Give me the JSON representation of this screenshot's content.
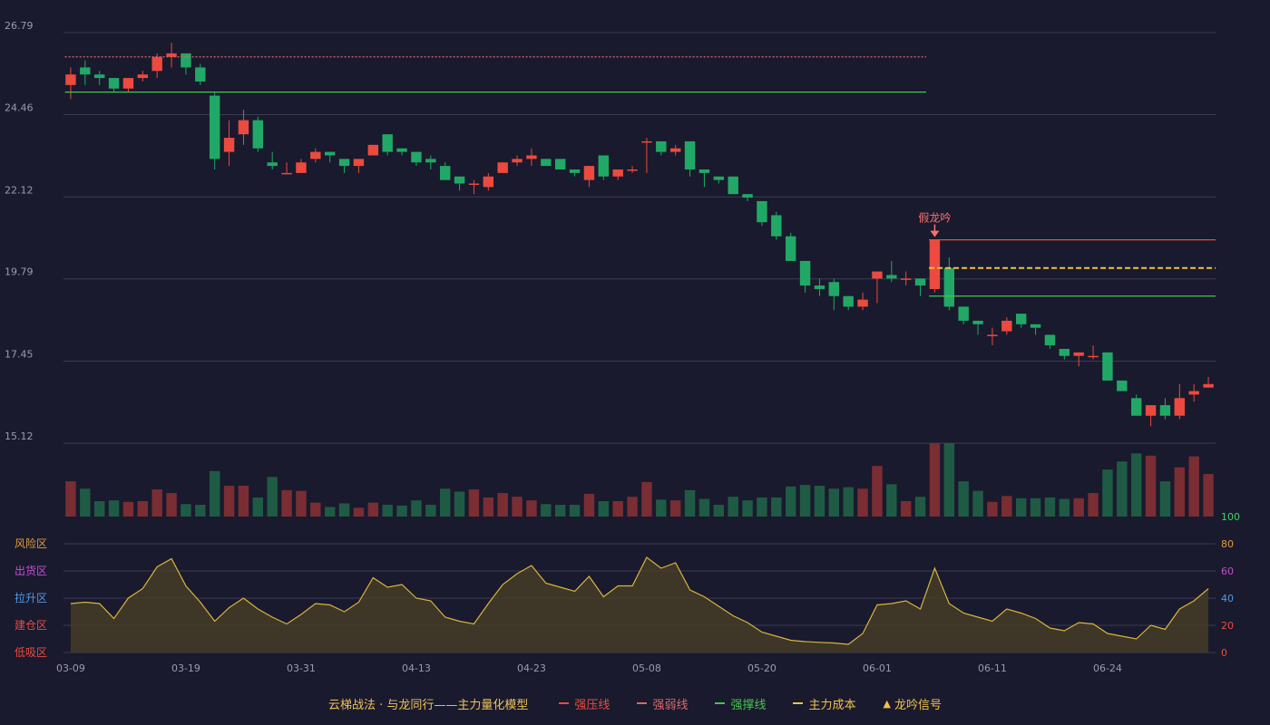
{
  "colors": {
    "background": "#191a2d",
    "grid": "#3a3c52",
    "axis_text": "#9a9cac",
    "up": "#ec4a3f",
    "down": "#22a866",
    "up_volume": "#7a2d33",
    "down_volume": "#1f5b44",
    "resistance": "#ec4a3f",
    "weak": "#d66a66",
    "support": "#46c44e",
    "cost": "#f0c24a",
    "signal": "#ff6f6f",
    "indicator_line": "#d9b43c",
    "indicator_fill": "#4b4025"
  },
  "chart_data": {
    "type": "candlestick",
    "price_axis": {
      "ticks": [
        "26.79",
        "24.46",
        "22.12",
        "19.79",
        "17.45",
        "15.12"
      ],
      "ylim": [
        15.12,
        26.79
      ]
    },
    "x_tick_labels": [
      {
        "index": 0,
        "label": "03-09"
      },
      {
        "index": 8,
        "label": "03-19"
      },
      {
        "index": 16,
        "label": "03-31"
      },
      {
        "index": 24,
        "label": "04-13"
      },
      {
        "index": 32,
        "label": "04-23"
      },
      {
        "index": 40,
        "label": "05-08"
      },
      {
        "index": 48,
        "label": "05-20"
      },
      {
        "index": 56,
        "label": "06-01"
      },
      {
        "index": 64,
        "label": "06-11"
      },
      {
        "index": 72,
        "label": "06-24"
      }
    ],
    "candles": [
      [
        25.3,
        25.6,
        25.8,
        24.9
      ],
      [
        25.8,
        25.6,
        26.0,
        25.3
      ],
      [
        25.6,
        25.5,
        25.7,
        25.3
      ],
      [
        25.5,
        25.2,
        25.5,
        25.1
      ],
      [
        25.2,
        25.5,
        25.5,
        25.1
      ],
      [
        25.5,
        25.6,
        25.7,
        25.4
      ],
      [
        25.7,
        26.1,
        26.2,
        25.5
      ],
      [
        26.1,
        26.2,
        26.5,
        25.8
      ],
      [
        26.2,
        25.8,
        26.2,
        25.6
      ],
      [
        25.8,
        25.4,
        25.9,
        25.3
      ],
      [
        25.0,
        23.2,
        25.1,
        22.9
      ],
      [
        23.4,
        23.8,
        24.3,
        23.0
      ],
      [
        23.9,
        24.3,
        24.6,
        23.6
      ],
      [
        24.3,
        23.5,
        24.4,
        23.4
      ],
      [
        23.1,
        23.0,
        23.4,
        22.9
      ],
      [
        22.8,
        22.8,
        23.1,
        22.8
      ],
      [
        22.8,
        23.1,
        23.2,
        22.8
      ],
      [
        23.2,
        23.4,
        23.5,
        23.1
      ],
      [
        23.4,
        23.3,
        23.4,
        23.1
      ],
      [
        23.2,
        23.0,
        23.2,
        22.8
      ],
      [
        23.0,
        23.2,
        23.2,
        22.8
      ],
      [
        23.3,
        23.6,
        23.6,
        23.3
      ],
      [
        23.9,
        23.4,
        23.9,
        23.3
      ],
      [
        23.5,
        23.4,
        23.5,
        23.3
      ],
      [
        23.4,
        23.1,
        23.4,
        23.0
      ],
      [
        23.2,
        23.1,
        23.3,
        22.9
      ],
      [
        23.0,
        22.6,
        23.1,
        22.6
      ],
      [
        22.7,
        22.5,
        22.7,
        22.3
      ],
      [
        22.5,
        22.5,
        22.6,
        22.2
      ],
      [
        22.4,
        22.7,
        22.8,
        22.3
      ],
      [
        22.8,
        23.1,
        23.1,
        22.8
      ],
      [
        23.1,
        23.2,
        23.3,
        23.0
      ],
      [
        23.2,
        23.3,
        23.5,
        23.0
      ],
      [
        23.2,
        23.0,
        23.2,
        23.0
      ],
      [
        23.2,
        22.9,
        23.2,
        22.9
      ],
      [
        22.9,
        22.8,
        22.9,
        22.7
      ],
      [
        22.6,
        23.0,
        23.0,
        22.4
      ],
      [
        23.3,
        22.7,
        23.3,
        22.6
      ],
      [
        22.7,
        22.9,
        22.9,
        22.6
      ],
      [
        22.9,
        22.9,
        23.0,
        22.8
      ],
      [
        23.7,
        23.7,
        23.8,
        22.8
      ],
      [
        23.7,
        23.4,
        23.7,
        23.3
      ],
      [
        23.4,
        23.5,
        23.6,
        23.3
      ],
      [
        23.7,
        22.9,
        23.7,
        22.7
      ],
      [
        22.9,
        22.8,
        22.9,
        22.4
      ],
      [
        22.7,
        22.6,
        22.7,
        22.5
      ],
      [
        22.7,
        22.2,
        22.7,
        22.2
      ],
      [
        22.2,
        22.1,
        22.2,
        22.0
      ],
      [
        22.0,
        21.4,
        22.0,
        21.3
      ],
      [
        21.6,
        21.0,
        21.7,
        20.9
      ],
      [
        21.0,
        20.3,
        21.1,
        20.3
      ],
      [
        20.3,
        19.6,
        20.3,
        19.4
      ],
      [
        19.6,
        19.5,
        19.8,
        19.3
      ],
      [
        19.7,
        19.3,
        19.8,
        18.9
      ],
      [
        19.3,
        19.0,
        19.3,
        18.9
      ],
      [
        19.0,
        19.2,
        19.4,
        18.9
      ],
      [
        19.8,
        20.0,
        20.0,
        19.1
      ],
      [
        19.9,
        19.8,
        20.3,
        19.7
      ],
      [
        19.8,
        19.8,
        20.0,
        19.6
      ],
      [
        19.8,
        19.6,
        19.8,
        19.3
      ],
      [
        19.5,
        20.9,
        20.9,
        19.4
      ],
      [
        20.1,
        19.0,
        20.4,
        18.9
      ],
      [
        19.0,
        18.6,
        19.0,
        18.5
      ],
      [
        18.6,
        18.5,
        18.6,
        18.2
      ],
      [
        18.2,
        18.2,
        18.4,
        17.9
      ],
      [
        18.3,
        18.6,
        18.7,
        18.2
      ],
      [
        18.8,
        18.5,
        18.8,
        18.4
      ],
      [
        18.5,
        18.4,
        18.5,
        18.2
      ],
      [
        18.2,
        17.9,
        18.2,
        17.8
      ],
      [
        17.8,
        17.6,
        17.8,
        17.5
      ],
      [
        17.6,
        17.7,
        17.7,
        17.3
      ],
      [
        17.6,
        17.6,
        17.9,
        17.5
      ],
      [
        17.7,
        16.9,
        17.7,
        16.9
      ],
      [
        16.9,
        16.6,
        16.9,
        16.6
      ],
      [
        16.4,
        15.9,
        16.5,
        15.9
      ],
      [
        15.9,
        16.2,
        16.2,
        15.6
      ],
      [
        16.2,
        15.9,
        16.4,
        15.8
      ],
      [
        15.9,
        16.4,
        16.8,
        15.8
      ],
      [
        16.5,
        16.6,
        16.8,
        16.3
      ],
      [
        16.7,
        16.8,
        17.0,
        16.7
      ]
    ],
    "volumes": [
      48,
      38,
      21,
      22,
      20,
      21,
      37,
      32,
      17,
      16,
      62,
      42,
      42,
      26,
      54,
      36,
      35,
      19,
      13,
      18,
      12,
      19,
      16,
      15,
      22,
      16,
      38,
      34,
      37,
      26,
      32,
      27,
      22,
      17,
      16,
      16,
      31,
      21,
      21,
      27,
      47,
      23,
      22,
      36,
      24,
      16,
      27,
      22,
      26,
      26,
      41,
      43,
      42,
      38,
      40,
      38,
      69,
      44,
      21,
      27,
      145,
      166,
      48,
      35,
      20,
      28,
      25,
      25,
      26,
      24,
      25,
      32,
      64,
      75,
      86,
      83,
      48,
      67,
      82,
      58
    ],
    "volume_max": 100,
    "indicator": {
      "name": "龙吟区间",
      "axis_ticks": [
        "100",
        "80",
        "60",
        "40",
        "20",
        "0"
      ],
      "ylim": [
        0,
        100
      ],
      "zones": [
        "风险区",
        "出货区",
        "拉升区",
        "建仓区",
        "低吸区"
      ],
      "values": [
        36,
        37,
        36,
        25,
        40,
        47,
        63,
        69,
        49,
        37,
        23,
        33,
        40,
        32,
        26,
        21,
        28,
        36,
        35,
        30,
        37,
        55,
        48,
        50,
        40,
        38,
        26,
        23,
        21,
        36,
        50,
        58,
        64,
        51,
        48,
        45,
        56,
        41,
        49,
        49,
        70,
        62,
        66,
        46,
        41,
        34,
        27,
        22,
        15,
        12,
        9,
        8,
        7.5,
        7,
        6,
        14,
        35,
        36,
        38,
        32,
        62,
        36,
        29,
        26,
        23,
        32,
        29,
        25,
        18,
        16,
        22,
        21,
        14,
        12,
        10,
        20,
        17,
        32,
        38,
        47
      ]
    },
    "lines": [
      {
        "kind": "weak",
        "value": 26.1,
        "from": 0,
        "to": 59
      },
      {
        "kind": "support",
        "value": 25.1,
        "from": 0,
        "to": 59
      },
      {
        "kind": "resistance",
        "value": 20.9,
        "from": 60,
        "to": 79
      },
      {
        "kind": "cost",
        "value": 20.1,
        "from": 60,
        "to": 79
      },
      {
        "kind": "support",
        "value": 19.3,
        "from": 60,
        "to": 79
      }
    ],
    "signal": {
      "index": 60,
      "label": "假龙吟"
    }
  },
  "legend": {
    "title": "云梯战法 · 与龙同行——主力量化模型",
    "items": [
      {
        "label": "强压线",
        "style": "solid",
        "color": "#ec4a3f"
      },
      {
        "label": "强弱线",
        "style": "dashed",
        "color": "#d66a66"
      },
      {
        "label": "强撑线",
        "style": "solid",
        "color": "#46c44e"
      },
      {
        "label": "主力成本",
        "style": "dashed",
        "color": "#f0c24a"
      },
      {
        "label": "龙吟信号",
        "style": "triangle",
        "color": "#f0c24a"
      }
    ]
  }
}
